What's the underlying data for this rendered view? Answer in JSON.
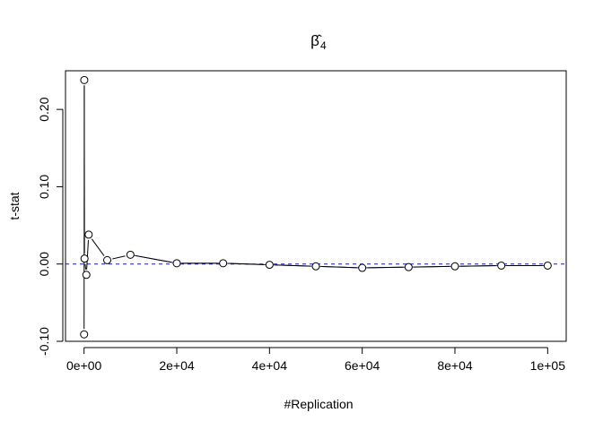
{
  "chart_data": {
    "type": "line",
    "title": "β̂",
    "title_subscript": "4",
    "xlabel": "#Replication",
    "ylabel": "t-stat",
    "xlim": [
      -4000,
      104000
    ],
    "ylim": [
      -0.1,
      0.25
    ],
    "x_ticks": [
      0,
      20000,
      40000,
      60000,
      80000,
      100000
    ],
    "x_tick_labels": [
      "0e+00",
      "2e+04",
      "4e+04",
      "6e+04",
      "8e+04",
      "1e+05"
    ],
    "y_ticks": [
      -0.1,
      0.0,
      0.1,
      0.2
    ],
    "y_tick_labels": [
      "-0.10",
      "0.00",
      "0.10",
      "0.20"
    ],
    "grid": false,
    "legend": "none",
    "reference_line": {
      "y": 0,
      "style": "dashed",
      "color": "#1a1aa6"
    },
    "series": [
      {
        "x": [
          10,
          50,
          100,
          500,
          1000,
          5000,
          10000,
          20000,
          30000,
          40000,
          50000,
          60000,
          70000,
          80000,
          90000,
          100000
        ],
        "y": [
          -0.091,
          0.238,
          0.007,
          -0.014,
          0.038,
          0.005,
          0.012,
          0.001,
          0.001,
          -0.001,
          -0.003,
          -0.005,
          -0.004,
          -0.003,
          -0.002,
          -0.002
        ],
        "color": "#000000",
        "smooth_color": "#1a1aa6"
      }
    ]
  }
}
